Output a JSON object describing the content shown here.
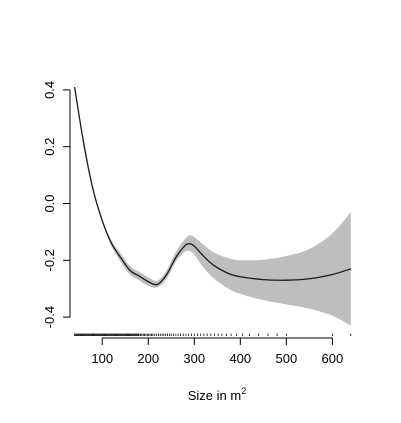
{
  "chart_data": {
    "type": "line",
    "title": "",
    "xlabel": "Size in m",
    "xlabel_superscript": "2",
    "ylabel": "",
    "xlim": [
      30,
      660
    ],
    "ylim": [
      -0.47,
      0.47
    ],
    "x_ticks": [
      100,
      200,
      300,
      400,
      500,
      600
    ],
    "y_ticks": [
      -0.4,
      -0.2,
      0.0,
      0.2,
      0.4
    ],
    "x_tick_labels": [
      "100",
      "200",
      "300",
      "400",
      "500",
      "600"
    ],
    "y_tick_labels": [
      "-0.4",
      "-0.2",
      "0.0",
      "0.2",
      "0.4"
    ],
    "grid": false,
    "series": [
      {
        "x": [
          40,
          60,
          80,
          100,
          120,
          140,
          160,
          180,
          200,
          220,
          240,
          260,
          280,
          290,
          300,
          320,
          340,
          360,
          380,
          400,
          450,
          500,
          550,
          600,
          640
        ],
        "values": [
          0.41,
          0.21,
          0.05,
          -0.06,
          -0.14,
          -0.19,
          -0.235,
          -0.255,
          -0.275,
          -0.285,
          -0.25,
          -0.19,
          -0.148,
          -0.142,
          -0.15,
          -0.185,
          -0.215,
          -0.235,
          -0.25,
          -0.258,
          -0.268,
          -0.27,
          -0.265,
          -0.25,
          -0.23
        ],
        "lower": [
          0.41,
          0.2,
          0.045,
          -0.065,
          -0.15,
          -0.205,
          -0.25,
          -0.27,
          -0.29,
          -0.295,
          -0.265,
          -0.205,
          -0.17,
          -0.168,
          -0.18,
          -0.225,
          -0.26,
          -0.285,
          -0.305,
          -0.318,
          -0.34,
          -0.355,
          -0.37,
          -0.395,
          -0.43
        ],
        "upper": [
          0.41,
          0.22,
          0.055,
          -0.055,
          -0.13,
          -0.175,
          -0.22,
          -0.24,
          -0.26,
          -0.272,
          -0.235,
          -0.17,
          -0.125,
          -0.112,
          -0.118,
          -0.145,
          -0.17,
          -0.185,
          -0.195,
          -0.2,
          -0.198,
          -0.185,
          -0.16,
          -0.105,
          -0.03
        ]
      }
    ],
    "rug": [
      40,
      42,
      44,
      46,
      48,
      50,
      52,
      54,
      56,
      58,
      60,
      62,
      64,
      66,
      68,
      70,
      72,
      74,
      76,
      78,
      80,
      82,
      84,
      86,
      88,
      90,
      92,
      94,
      96,
      98,
      100,
      102,
      104,
      106,
      108,
      110,
      112,
      114,
      116,
      118,
      120,
      122,
      124,
      126,
      128,
      130,
      132,
      134,
      136,
      138,
      140,
      142,
      144,
      146,
      148,
      150,
      152,
      154,
      156,
      158,
      160,
      162,
      164,
      166,
      168,
      170,
      172,
      174,
      176,
      178,
      180,
      183,
      186,
      189,
      192,
      195,
      198,
      201,
      204,
      207,
      210,
      214,
      218,
      222,
      226,
      230,
      234,
      238,
      242,
      246,
      250,
      255,
      260,
      265,
      270,
      276,
      282,
      288,
      294,
      300,
      307,
      314,
      321,
      328,
      336,
      344,
      352,
      360,
      370,
      380,
      392,
      405,
      420,
      440,
      460,
      480,
      500,
      600,
      640
    ]
  }
}
